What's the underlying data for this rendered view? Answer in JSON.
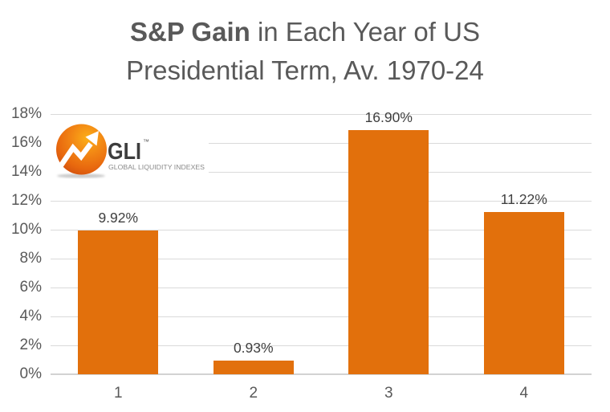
{
  "title": {
    "bold": "S&P Gain",
    "rest": " in Each Year of US",
    "line2": "Presidential Term, Av. 1970-24"
  },
  "logo": {
    "brand": "GLI",
    "trademark": "™",
    "tagline": "GLOBAL LIQUIDITY INDEXES"
  },
  "chart_data": {
    "type": "bar",
    "title": "S&P Gain in Each Year of US Presidential Term, Av. 1970-24",
    "categories": [
      "1",
      "2",
      "3",
      "4"
    ],
    "values": [
      9.92,
      0.93,
      16.9,
      11.22
    ],
    "value_labels": [
      "9.92%",
      "0.93%",
      "16.90%",
      "11.22%"
    ],
    "xlabel": "",
    "ylabel": "",
    "ylim": [
      0,
      18
    ],
    "ytick_step": 2,
    "ytick_labels": [
      "0%",
      "2%",
      "4%",
      "6%",
      "8%",
      "10%",
      "12%",
      "14%",
      "16%",
      "18%"
    ],
    "grid": true,
    "legend": false,
    "bar_color": "#E2700C",
    "colors": {
      "title": "#595959",
      "axis_labels": "#595959",
      "value_labels": "#3F3F3F",
      "gridline": "#DADADA",
      "baseline": "#D2D2D2",
      "logo_orange_light": "#FCAF17",
      "logo_orange_dark": "#D14F0E",
      "logo_text": "#3D3D3D",
      "logo_tagline": "#8A8A8A"
    }
  }
}
